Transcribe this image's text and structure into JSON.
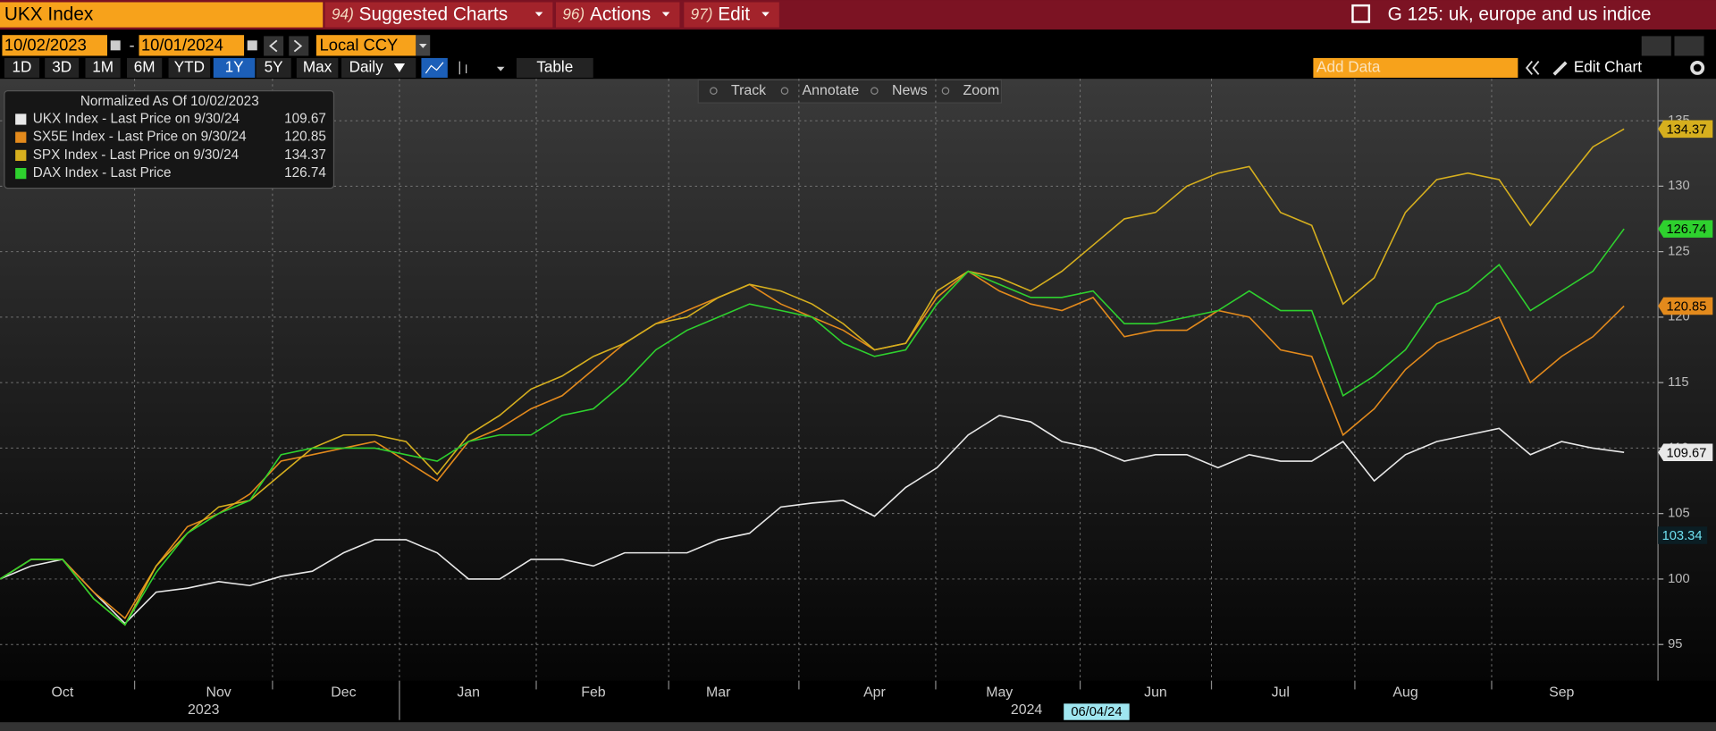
{
  "ui": {
    "security": "UKX Index",
    "menus": [
      {
        "num": "94)",
        "label": "Suggested Charts"
      },
      {
        "num": "96)",
        "label": "Actions"
      },
      {
        "num": "97)",
        "label": "Edit"
      }
    ],
    "window_title": "G 125: uk, europe and us indice",
    "start_date": "10/02/2023",
    "date_sep": "-",
    "end_date": "10/01/2024",
    "currency": "Local CCY",
    "periods": [
      "1D",
      "3D",
      "1M",
      "6M",
      "YTD",
      "1Y",
      "5Y",
      "Max"
    ],
    "selected_period": "1Y",
    "frequency": "Daily",
    "table": "Table",
    "add_data": "Add Data",
    "edit_chart": "Edit Chart",
    "tools": [
      "Track",
      "Annotate",
      "News",
      "Zoom"
    ]
  },
  "chart_data": {
    "type": "line",
    "legend_title": "Normalized As Of 10/02/2023",
    "categories": [
      null,
      null,
      "Oct",
      null,
      null,
      null,
      null,
      "Nov",
      null,
      null,
      null,
      "Dec",
      null,
      null,
      null,
      "Jan",
      null,
      null,
      null,
      "Feb",
      null,
      null,
      null,
      "Mar",
      null,
      null,
      null,
      null,
      "Apr",
      null,
      null,
      null,
      "May",
      null,
      null,
      null,
      null,
      "Jun",
      null,
      null,
      null,
      "Jul",
      null,
      null,
      null,
      "Aug",
      null,
      null,
      null,
      null,
      "Sep",
      null,
      null
    ],
    "year_labels": [
      "2023",
      "2024"
    ],
    "series": [
      {
        "name": "UKX Index - Last Price on 9/30/24",
        "color": "#e8e8e8",
        "values": [
          100,
          101,
          101.5,
          99,
          96.6,
          99,
          99.3,
          99.8,
          99.5,
          100.2,
          100.6,
          102,
          103,
          103,
          102,
          100,
          100,
          101.5,
          101.5,
          101,
          102,
          102,
          102,
          103,
          103.5,
          105.5,
          105.8,
          106,
          104.8,
          107,
          108.5,
          111,
          112.5,
          112,
          110.5,
          110,
          109,
          109.5,
          109.5,
          108.5,
          109.5,
          109,
          109,
          110.5,
          107.5,
          109.5,
          110.5,
          111,
          111.5,
          109.5,
          110.5,
          110,
          109.67
        ]
      },
      {
        "name": "SX5E Index - Last Price on 9/30/24",
        "color": "#e38a1c",
        "values": [
          100,
          101.5,
          101.5,
          99,
          97,
          101,
          104,
          105,
          106.5,
          109,
          109.5,
          110,
          110.5,
          109,
          107.5,
          110.5,
          111.5,
          113,
          114,
          116,
          118,
          119.5,
          120.5,
          121.5,
          122.5,
          121,
          120,
          119,
          117.5,
          118,
          121.5,
          123.5,
          122,
          121,
          120.5,
          121.5,
          118.5,
          119,
          119,
          120.5,
          120,
          117.5,
          117,
          111,
          113,
          116,
          118,
          119,
          120,
          115,
          117,
          118.5,
          120.85
        ]
      },
      {
        "name": "SPX Index - Last Price on 9/30/24",
        "color": "#d6af1e",
        "values": [
          100,
          101.5,
          101.5,
          98.5,
          96.5,
          101,
          103.5,
          105.5,
          106,
          108,
          110,
          111,
          111,
          110.5,
          108,
          111,
          112.5,
          114.5,
          115.5,
          117,
          118,
          119.5,
          120,
          121.5,
          122.5,
          122,
          121,
          119.5,
          117.5,
          118,
          122,
          123.5,
          123,
          122,
          123.5,
          125.5,
          127.5,
          128,
          130,
          131,
          131.5,
          128,
          127,
          121,
          123,
          128,
          130.5,
          131,
          130.5,
          127,
          130,
          133,
          134.37
        ]
      },
      {
        "name": "DAX Index - Last Price",
        "color": "#2ed12e",
        "values": [
          100,
          101.5,
          101.5,
          98.5,
          96.5,
          100.5,
          103.5,
          105,
          106,
          109.5,
          110,
          110,
          110,
          109.5,
          109,
          110.5,
          111,
          111,
          112.5,
          113,
          115,
          117.5,
          119,
          120,
          121,
          120.5,
          120,
          118,
          117,
          117.5,
          121,
          123.5,
          122.5,
          121.5,
          121.5,
          122,
          119.5,
          119.5,
          120,
          120.5,
          122,
          120.5,
          120.5,
          114,
          115.5,
          117.5,
          121,
          122,
          124,
          120.5,
          122,
          123.5,
          126.74
        ]
      }
    ],
    "ylim": [
      92.24,
      138.2
    ],
    "yticks": [
      95,
      100,
      105,
      110,
      115,
      120,
      125,
      130,
      135
    ],
    "grid": true,
    "crosshair": {
      "value": 103.34,
      "x_label": "06/04/24"
    }
  }
}
